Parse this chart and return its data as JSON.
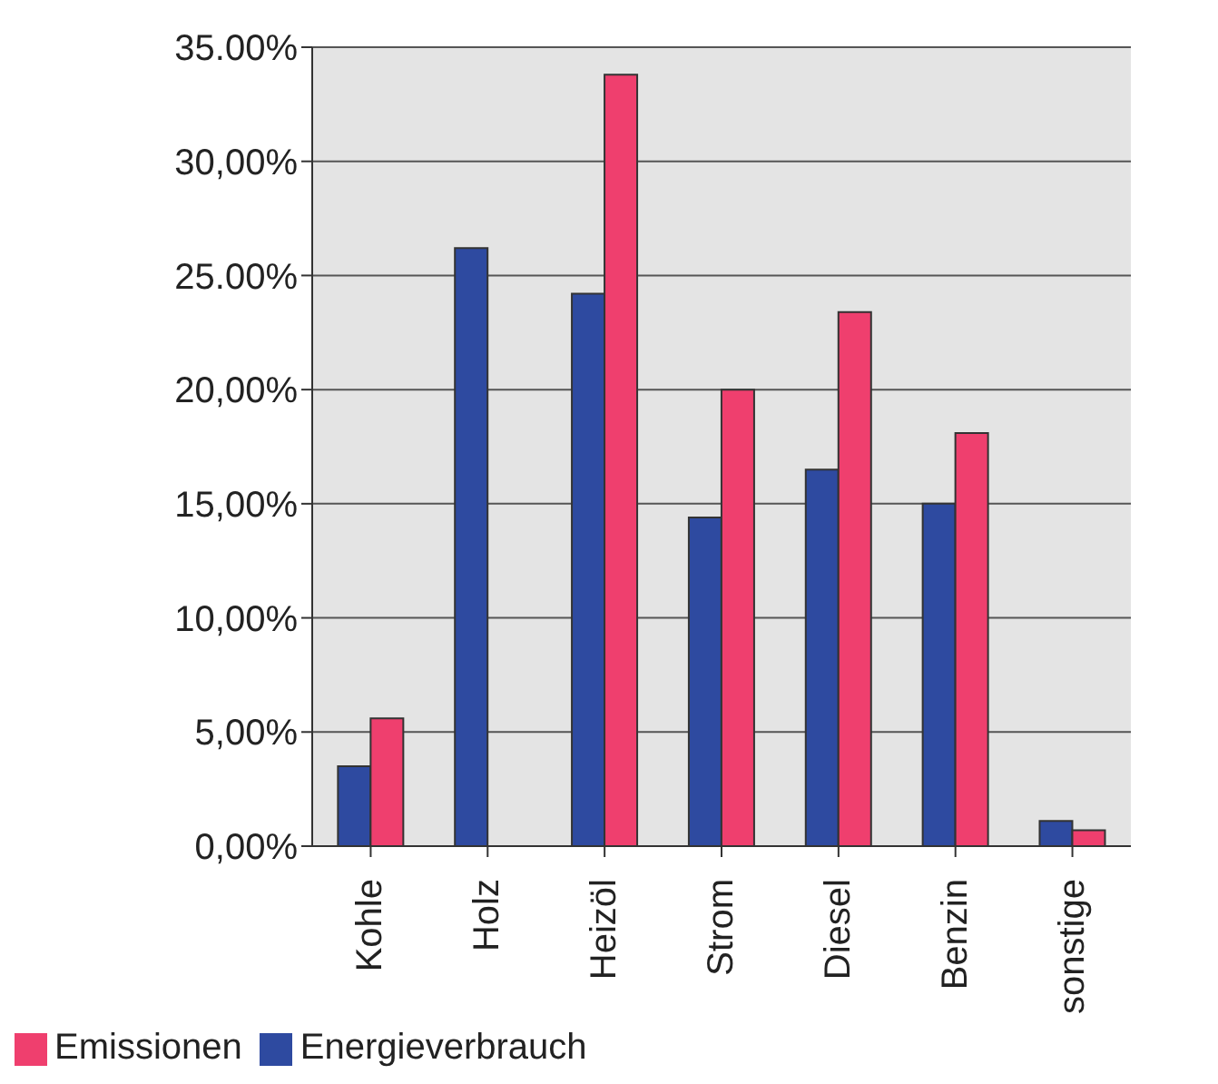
{
  "chart_data": {
    "type": "bar",
    "categories": [
      "Kohle",
      "Holz",
      "Heizöl",
      "Strom",
      "Diesel",
      "Benzin",
      "sonstige"
    ],
    "series": [
      {
        "name": "Energieverbrauch",
        "color": "#2e4aa0",
        "values": [
          3.5,
          26.2,
          24.2,
          14.4,
          16.5,
          15.0,
          1.1
        ]
      },
      {
        "name": "Emissionen",
        "color": "#ef3f6e",
        "values": [
          5.6,
          0,
          33.8,
          20.0,
          23.4,
          18.1,
          0.7
        ]
      }
    ],
    "ylim": [
      0,
      35
    ],
    "yticks": [
      {
        "value": 0,
        "label": "0,00%"
      },
      {
        "value": 5,
        "label": "5,00%"
      },
      {
        "value": 10,
        "label": "10,00%"
      },
      {
        "value": 15,
        "label": "15,00%"
      },
      {
        "value": 20,
        "label": "20,00%"
      },
      {
        "value": 25,
        "label": "25.00%"
      },
      {
        "value": 30,
        "label": "30,00%"
      },
      {
        "value": 35,
        "label": "35.00%"
      }
    ],
    "grid": "y",
    "legend": "bottom left"
  }
}
